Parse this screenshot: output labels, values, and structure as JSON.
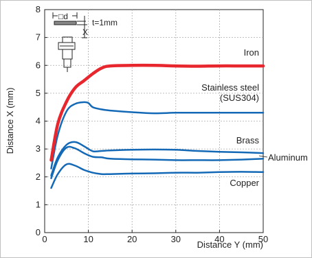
{
  "chart_data": {
    "type": "line",
    "xlabel": "Distance Y (mm)",
    "ylabel": "Distance X (mm)",
    "xlim": [
      0,
      50
    ],
    "ylim": [
      0,
      8
    ],
    "xticks": [
      0,
      10,
      20,
      30,
      40,
      50
    ],
    "yticks": [
      0,
      1,
      2,
      3,
      4,
      5,
      6,
      7,
      8
    ],
    "grid": true,
    "inset_labels": {
      "d": "□d",
      "x": "X",
      "t": "t=1mm"
    },
    "series": [
      {
        "name": "Iron",
        "color": "#e8262d",
        "width": 4.5,
        "x": [
          1.5,
          3,
          5,
          7,
          9,
          11,
          13,
          15,
          20,
          25,
          30,
          35,
          40,
          45,
          50
        ],
        "y": [
          2.6,
          3.9,
          4.7,
          5.2,
          5.45,
          5.7,
          5.9,
          5.98,
          6.0,
          6.0,
          5.98,
          5.97,
          5.98,
          5.98,
          5.98
        ]
      },
      {
        "name": "Stainless steel\n(SUS304)",
        "color": "#1469b6",
        "width": 2.5,
        "x": [
          1.5,
          3,
          5,
          7,
          9,
          10,
          11,
          13,
          15,
          20,
          25,
          30,
          35,
          40,
          45,
          50
        ],
        "y": [
          2.3,
          3.5,
          4.35,
          4.62,
          4.68,
          4.65,
          4.5,
          4.42,
          4.38,
          4.32,
          4.28,
          4.3,
          4.3,
          4.3,
          4.3,
          4.3
        ]
      },
      {
        "name": "Brass",
        "color": "#1469b6",
        "width": 2.5,
        "x": [
          1.5,
          3,
          5,
          7,
          9,
          11,
          13,
          15,
          20,
          25,
          30,
          35,
          40,
          45,
          50
        ],
        "y": [
          2.05,
          2.7,
          3.15,
          3.25,
          3.1,
          2.92,
          2.93,
          2.95,
          2.97,
          2.98,
          2.97,
          2.93,
          2.9,
          2.88,
          2.85
        ]
      },
      {
        "name": "Aluminum",
        "color": "#1469b6",
        "width": 2.5,
        "x": [
          1.5,
          3,
          5,
          7,
          9,
          11,
          13,
          15,
          20,
          25,
          30,
          35,
          40,
          45,
          50
        ],
        "y": [
          1.95,
          2.6,
          3.05,
          3.02,
          2.85,
          2.72,
          2.7,
          2.65,
          2.63,
          2.62,
          2.6,
          2.6,
          2.6,
          2.62,
          2.65
        ]
      },
      {
        "name": "Copper",
        "color": "#1469b6",
        "width": 2.5,
        "x": [
          1.5,
          3,
          5,
          7,
          9,
          11,
          13,
          15,
          20,
          25,
          30,
          35,
          40,
          45,
          50
        ],
        "y": [
          1.6,
          2.1,
          2.45,
          2.4,
          2.25,
          2.15,
          2.1,
          2.1,
          2.12,
          2.13,
          2.15,
          2.15,
          2.17,
          2.18,
          2.17
        ]
      }
    ]
  }
}
